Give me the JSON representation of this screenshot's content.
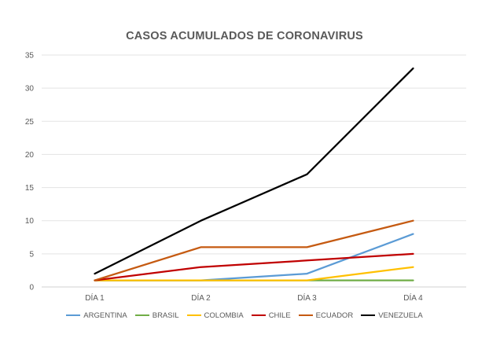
{
  "chart_data": {
    "type": "line",
    "title": "CASOS ACUMULADOS DE CORONAVIRUS",
    "xlabel": "",
    "ylabel": "",
    "categories": [
      "DÍA 1",
      "DÍA 2",
      "DÍA 3",
      "DÍA 4"
    ],
    "ylim": [
      0,
      35
    ],
    "yticks": [
      0,
      5,
      10,
      15,
      20,
      25,
      30,
      35
    ],
    "grid": true,
    "legend_position": "bottom",
    "series": [
      {
        "name": "ARGENTINA",
        "color": "#5B9BD5",
        "values": [
          1,
          1,
          2,
          8
        ]
      },
      {
        "name": "BRASIL",
        "color": "#70AD47",
        "values": [
          1,
          1,
          1,
          1
        ]
      },
      {
        "name": "COLOMBIA",
        "color": "#FFC000",
        "values": [
          1,
          1,
          1,
          3
        ]
      },
      {
        "name": "CHILE",
        "color": "#C00000",
        "values": [
          1,
          3,
          4,
          5
        ]
      },
      {
        "name": "ECUADOR",
        "color": "#C55A11",
        "values": [
          1,
          6,
          6,
          10
        ]
      },
      {
        "name": "VENEZUELA",
        "color": "#000000",
        "values": [
          2,
          10,
          17,
          33
        ]
      }
    ]
  }
}
